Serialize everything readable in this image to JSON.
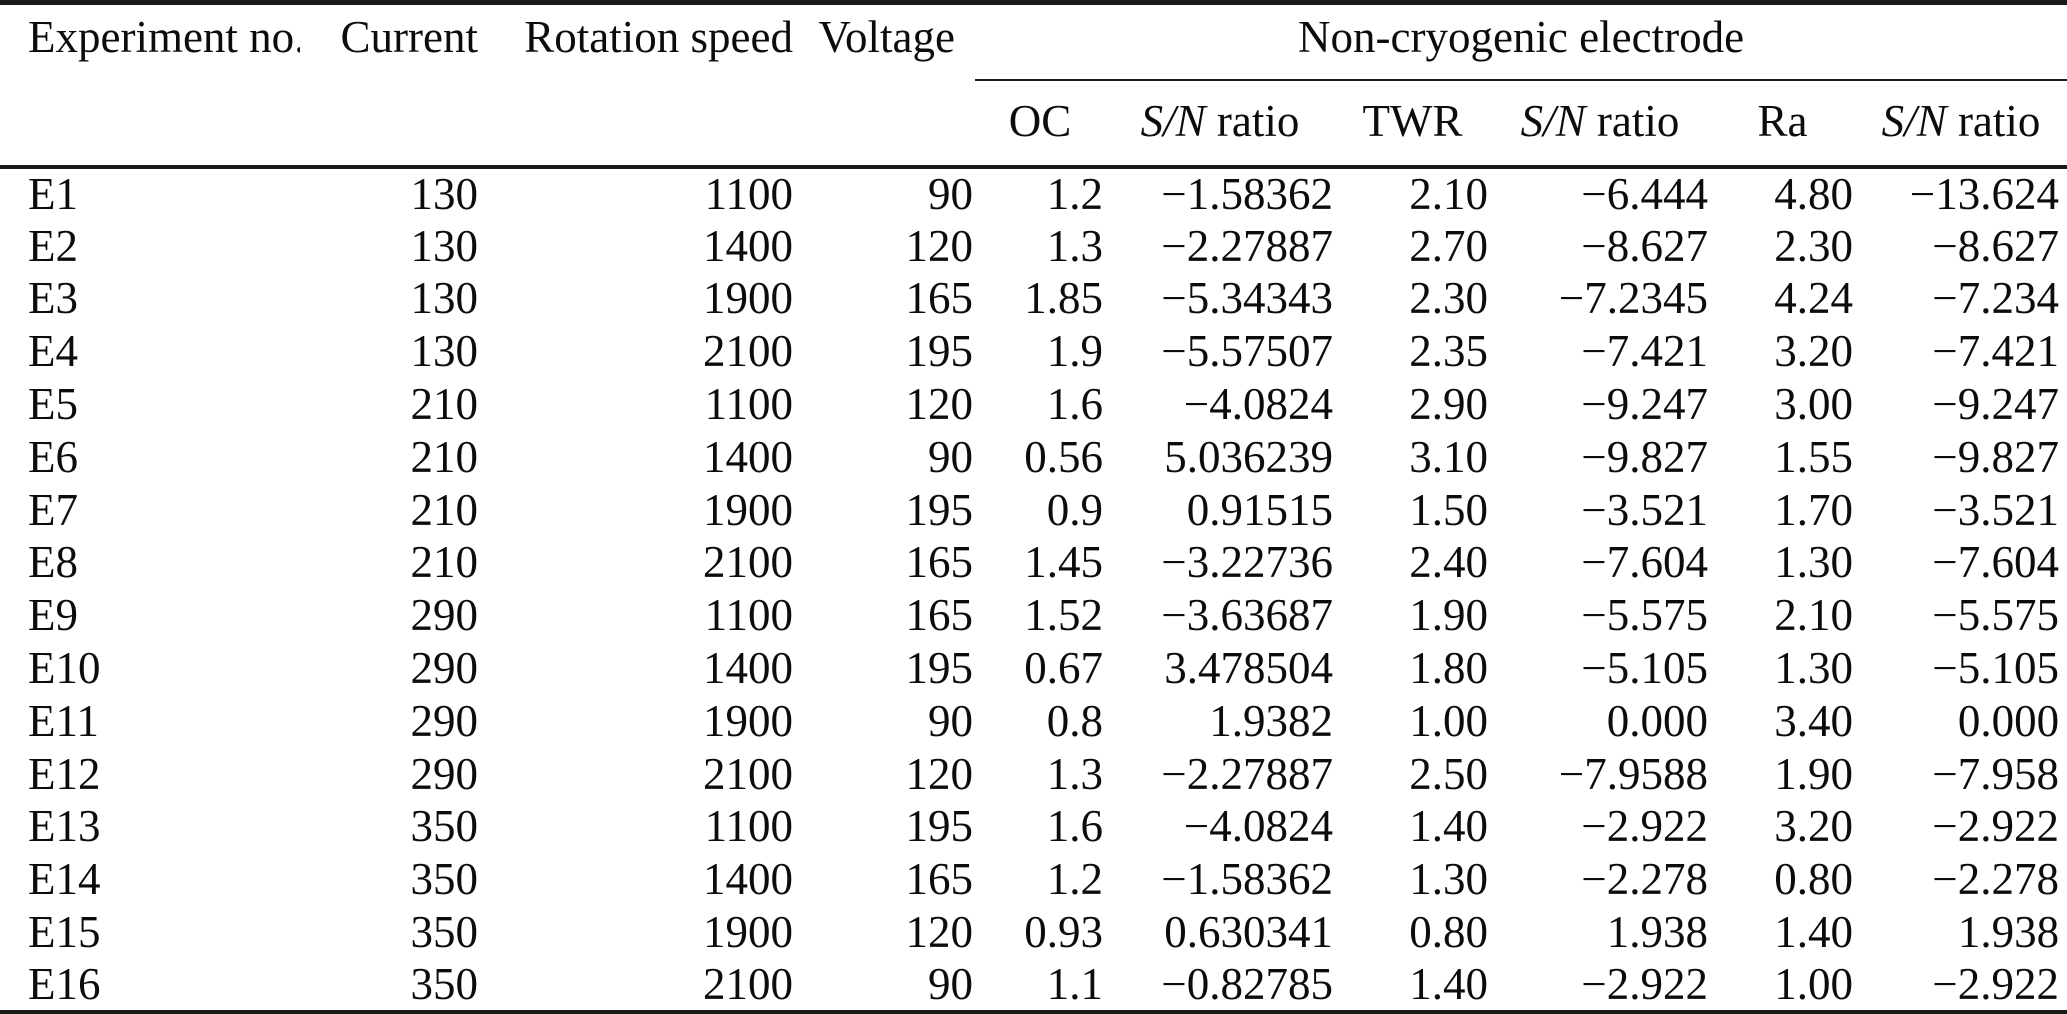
{
  "table": {
    "main_headers": {
      "experiment": "Experiment no.",
      "current": "Current",
      "rotation": "Rotation speed",
      "voltage": "Voltage",
      "group": "Non-cryogenic electrode"
    },
    "sub_headers": [
      {
        "math": "",
        "text": "OC"
      },
      {
        "math": "S/N",
        "text": "ratio"
      },
      {
        "math": "",
        "text": "TWR"
      },
      {
        "math": "S/N",
        "text": "ratio"
      },
      {
        "math": "",
        "text": "Ra"
      },
      {
        "math": "S/N",
        "text": "ratio"
      }
    ],
    "rows": [
      [
        "E1",
        "130",
        "1100",
        "90",
        "1.2",
        "−1.58362",
        "2.10",
        "−6.444",
        "4.80",
        "−13.624"
      ],
      [
        "E2",
        "130",
        "1400",
        "120",
        "1.3",
        "−2.27887",
        "2.70",
        "−8.627",
        "2.30",
        "−8.627"
      ],
      [
        "E3",
        "130",
        "1900",
        "165",
        "1.85",
        "−5.34343",
        "2.30",
        "−7.2345",
        "4.24",
        "−7.234"
      ],
      [
        "E4",
        "130",
        "2100",
        "195",
        "1.9",
        "−5.57507",
        "2.35",
        "−7.421",
        "3.20",
        "−7.421"
      ],
      [
        "E5",
        "210",
        "1100",
        "120",
        "1.6",
        "−4.0824",
        "2.90",
        "−9.247",
        "3.00",
        "−9.247"
      ],
      [
        "E6",
        "210",
        "1400",
        "90",
        "0.56",
        "5.036239",
        "3.10",
        "−9.827",
        "1.55",
        "−9.827"
      ],
      [
        "E7",
        "210",
        "1900",
        "195",
        "0.9",
        "0.91515",
        "1.50",
        "−3.521",
        "1.70",
        "−3.521"
      ],
      [
        "E8",
        "210",
        "2100",
        "165",
        "1.45",
        "−3.22736",
        "2.40",
        "−7.604",
        "1.30",
        "−7.604"
      ],
      [
        "E9",
        "290",
        "1100",
        "165",
        "1.52",
        "−3.63687",
        "1.90",
        "−5.575",
        "2.10",
        "−5.575"
      ],
      [
        "E10",
        "290",
        "1400",
        "195",
        "0.67",
        "3.478504",
        "1.80",
        "−5.105",
        "1.30",
        "−5.105"
      ],
      [
        "E11",
        "290",
        "1900",
        "90",
        "0.8",
        "1.9382",
        "1.00",
        "0.000",
        "3.40",
        "0.000"
      ],
      [
        "E12",
        "290",
        "2100",
        "120",
        "1.3",
        "−2.27887",
        "2.50",
        "−7.9588",
        "1.90",
        "−7.958"
      ],
      [
        "E13",
        "350",
        "1100",
        "195",
        "1.6",
        "−4.0824",
        "1.40",
        "−2.922",
        "3.20",
        "−2.922"
      ],
      [
        "E14",
        "350",
        "1400",
        "165",
        "1.2",
        "−1.58362",
        "1.30",
        "−2.278",
        "0.80",
        "−2.278"
      ],
      [
        "E15",
        "350",
        "1900",
        "120",
        "0.93",
        "0.630341",
        "0.80",
        "1.938",
        "1.40",
        "1.938"
      ],
      [
        "E16",
        "350",
        "2100",
        "90",
        "1.1",
        "−0.82785",
        "1.40",
        "−2.922",
        "1.00",
        "−2.922"
      ]
    ]
  },
  "colors": {
    "text": "#0c0c0c",
    "rule": "#1a1a1a",
    "background": "#ffffff"
  }
}
